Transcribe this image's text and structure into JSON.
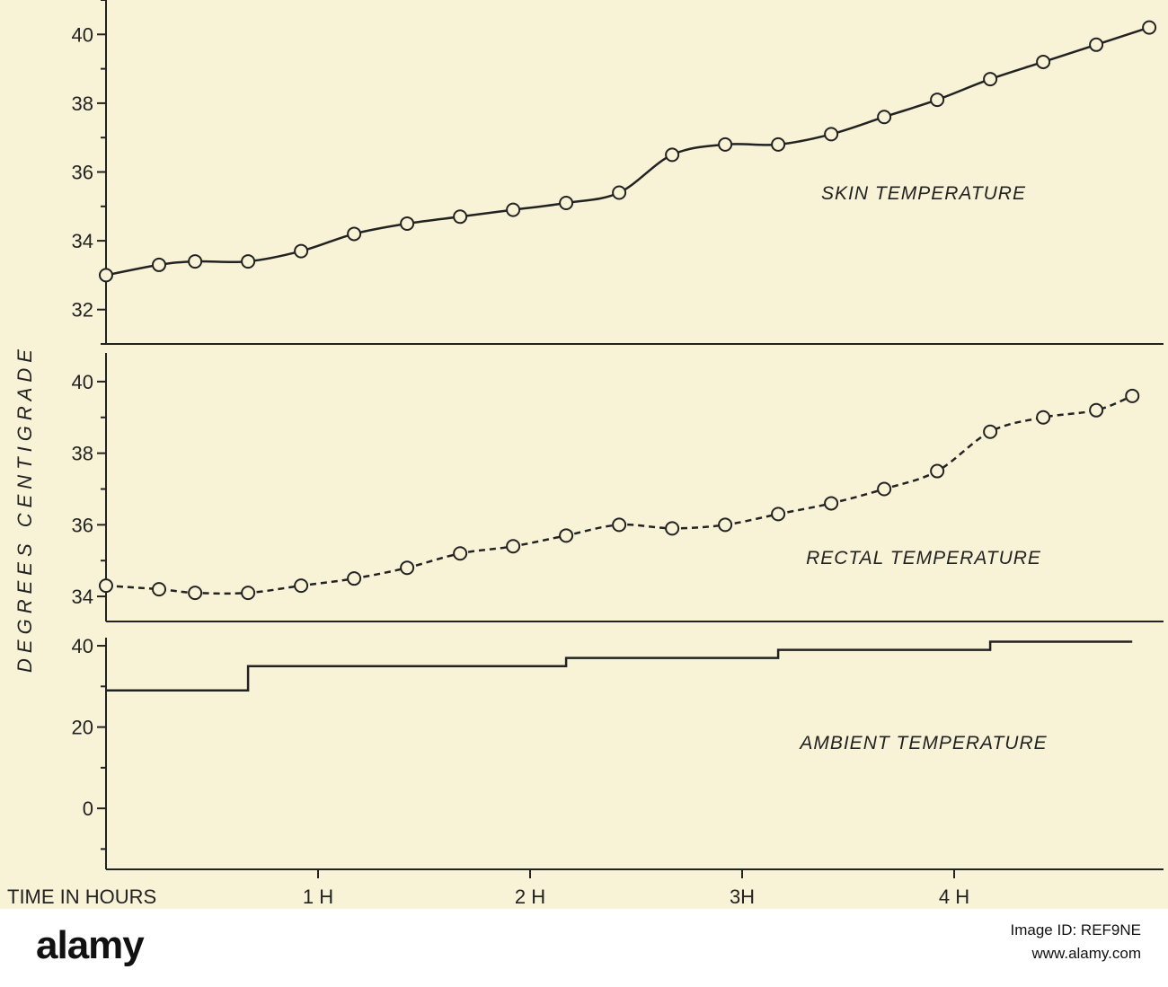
{
  "chart_data": [
    {
      "type": "line",
      "series_label": "SKIN TEMPERATURE",
      "ylim": [
        31,
        41
      ],
      "yticks": [
        32,
        34,
        36,
        38,
        40
      ],
      "line_style": "solid",
      "markers": true,
      "x": [
        0,
        0.25,
        0.42,
        0.67,
        0.92,
        1.17,
        1.42,
        1.67,
        1.92,
        2.17,
        2.42,
        2.67,
        2.92,
        3.17,
        3.42,
        3.67,
        3.92,
        4.17,
        4.42,
        4.67,
        4.92
      ],
      "values": [
        33.0,
        33.3,
        33.4,
        33.4,
        33.7,
        34.2,
        34.5,
        34.7,
        34.9,
        35.1,
        35.4,
        36.5,
        36.8,
        36.8,
        37.1,
        37.6,
        38.1,
        38.7,
        39.2,
        39.7,
        40.2
      ]
    },
    {
      "type": "line",
      "series_label": "RECTAL TEMPERATURE",
      "ylim": [
        33.3,
        40.8
      ],
      "yticks": [
        34,
        36,
        38,
        40
      ],
      "line_style": "dashed",
      "markers": true,
      "x": [
        0,
        0.25,
        0.42,
        0.67,
        0.92,
        1.17,
        1.42,
        1.67,
        1.92,
        2.17,
        2.42,
        2.67,
        2.92,
        3.17,
        3.42,
        3.67,
        3.92,
        4.17,
        4.42,
        4.67,
        4.84
      ],
      "values": [
        34.3,
        34.2,
        34.1,
        34.1,
        34.3,
        34.5,
        34.8,
        35.2,
        35.4,
        35.7,
        36.0,
        35.9,
        36.0,
        36.3,
        36.6,
        37.0,
        37.5,
        38.6,
        39.0,
        39.2,
        39.6
      ]
    },
    {
      "type": "line",
      "series_label": "AMBIENT TEMPERATURE",
      "ylim": [
        -15,
        42
      ],
      "yticks": [
        0,
        20,
        40
      ],
      "line_style": "step",
      "markers": false,
      "x": [
        0,
        0.67,
        0.67,
        2.17,
        2.17,
        3.17,
        3.17,
        4.17,
        4.17,
        4.84
      ],
      "values": [
        29,
        29,
        35,
        35,
        37,
        37,
        39,
        39,
        41,
        41
      ]
    }
  ],
  "x_axis": {
    "caption": "TIME IN HOURS",
    "ticks": [
      {
        "value": 1,
        "label": "1 H"
      },
      {
        "value": 2,
        "label": "2 H"
      },
      {
        "value": 3,
        "label": "3H"
      },
      {
        "value": 4,
        "label": "4 H"
      }
    ],
    "xlim": [
      0,
      5
    ]
  },
  "y_axis_title": "DEGREES CENTIGRADE",
  "watermark": {
    "logo": "alamy",
    "image_id_label": "Image ID: REF9NE",
    "site": "www.alamy.com"
  }
}
